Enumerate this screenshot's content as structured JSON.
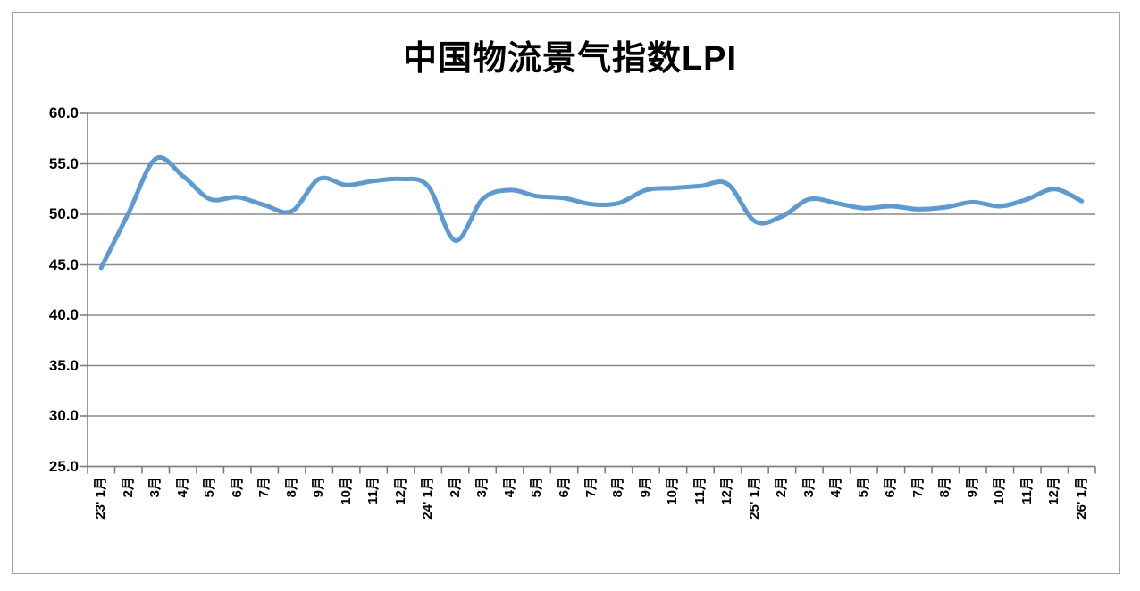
{
  "title": "中国物流景气指数LPI",
  "colors": {
    "line": "#5B9BD5",
    "gridline": "#8a8a8a",
    "axis": "#7f7f7f",
    "text": "#000000",
    "frame_border": "#a3a3a3",
    "background": "#ffffff"
  },
  "chart_data": {
    "type": "line",
    "title": "中国物流景气指数LPI",
    "xlabel": "",
    "ylabel": "",
    "ylim": [
      25.0,
      60.0
    ],
    "y_tick_step": 5.0,
    "y_tick_labels": [
      "60.0",
      "55.0",
      "50.0",
      "45.0",
      "40.0",
      "35.0",
      "30.0",
      "25.0"
    ],
    "grid": "horizontal-only",
    "legend": "none",
    "smooth_line": true,
    "x_label_rotation_deg": -90,
    "categories": [
      "23' 1月",
      "2月",
      "3月",
      "4月",
      "5月",
      "6月",
      "7月",
      "8月",
      "9月",
      "10月",
      "11月",
      "12月",
      "24' 1月",
      "2月",
      "3月",
      "4月",
      "5月",
      "6月",
      "7月",
      "8月",
      "9月",
      "10月",
      "11月",
      "12月",
      "25' 1月",
      "2月",
      "3月",
      "4月",
      "5月",
      "6月",
      "7月",
      "8月",
      "9月",
      "10月",
      "11月",
      "12月",
      "26' 1月"
    ],
    "series": [
      {
        "name": "中国物流景气指数LPI",
        "color": "#5B9BD5",
        "values": [
          44.7,
          50.1,
          55.5,
          53.8,
          51.5,
          51.7,
          50.9,
          50.3,
          53.5,
          52.9,
          53.3,
          53.5,
          52.8,
          47.4,
          51.5,
          52.4,
          51.8,
          51.6,
          51.0,
          51.1,
          52.4,
          52.6,
          52.8,
          53.0,
          49.3,
          49.8,
          51.5,
          51.1,
          50.6,
          50.8,
          50.5,
          50.7,
          51.2,
          50.8,
          51.5,
          52.5,
          51.3
        ]
      }
    ]
  }
}
